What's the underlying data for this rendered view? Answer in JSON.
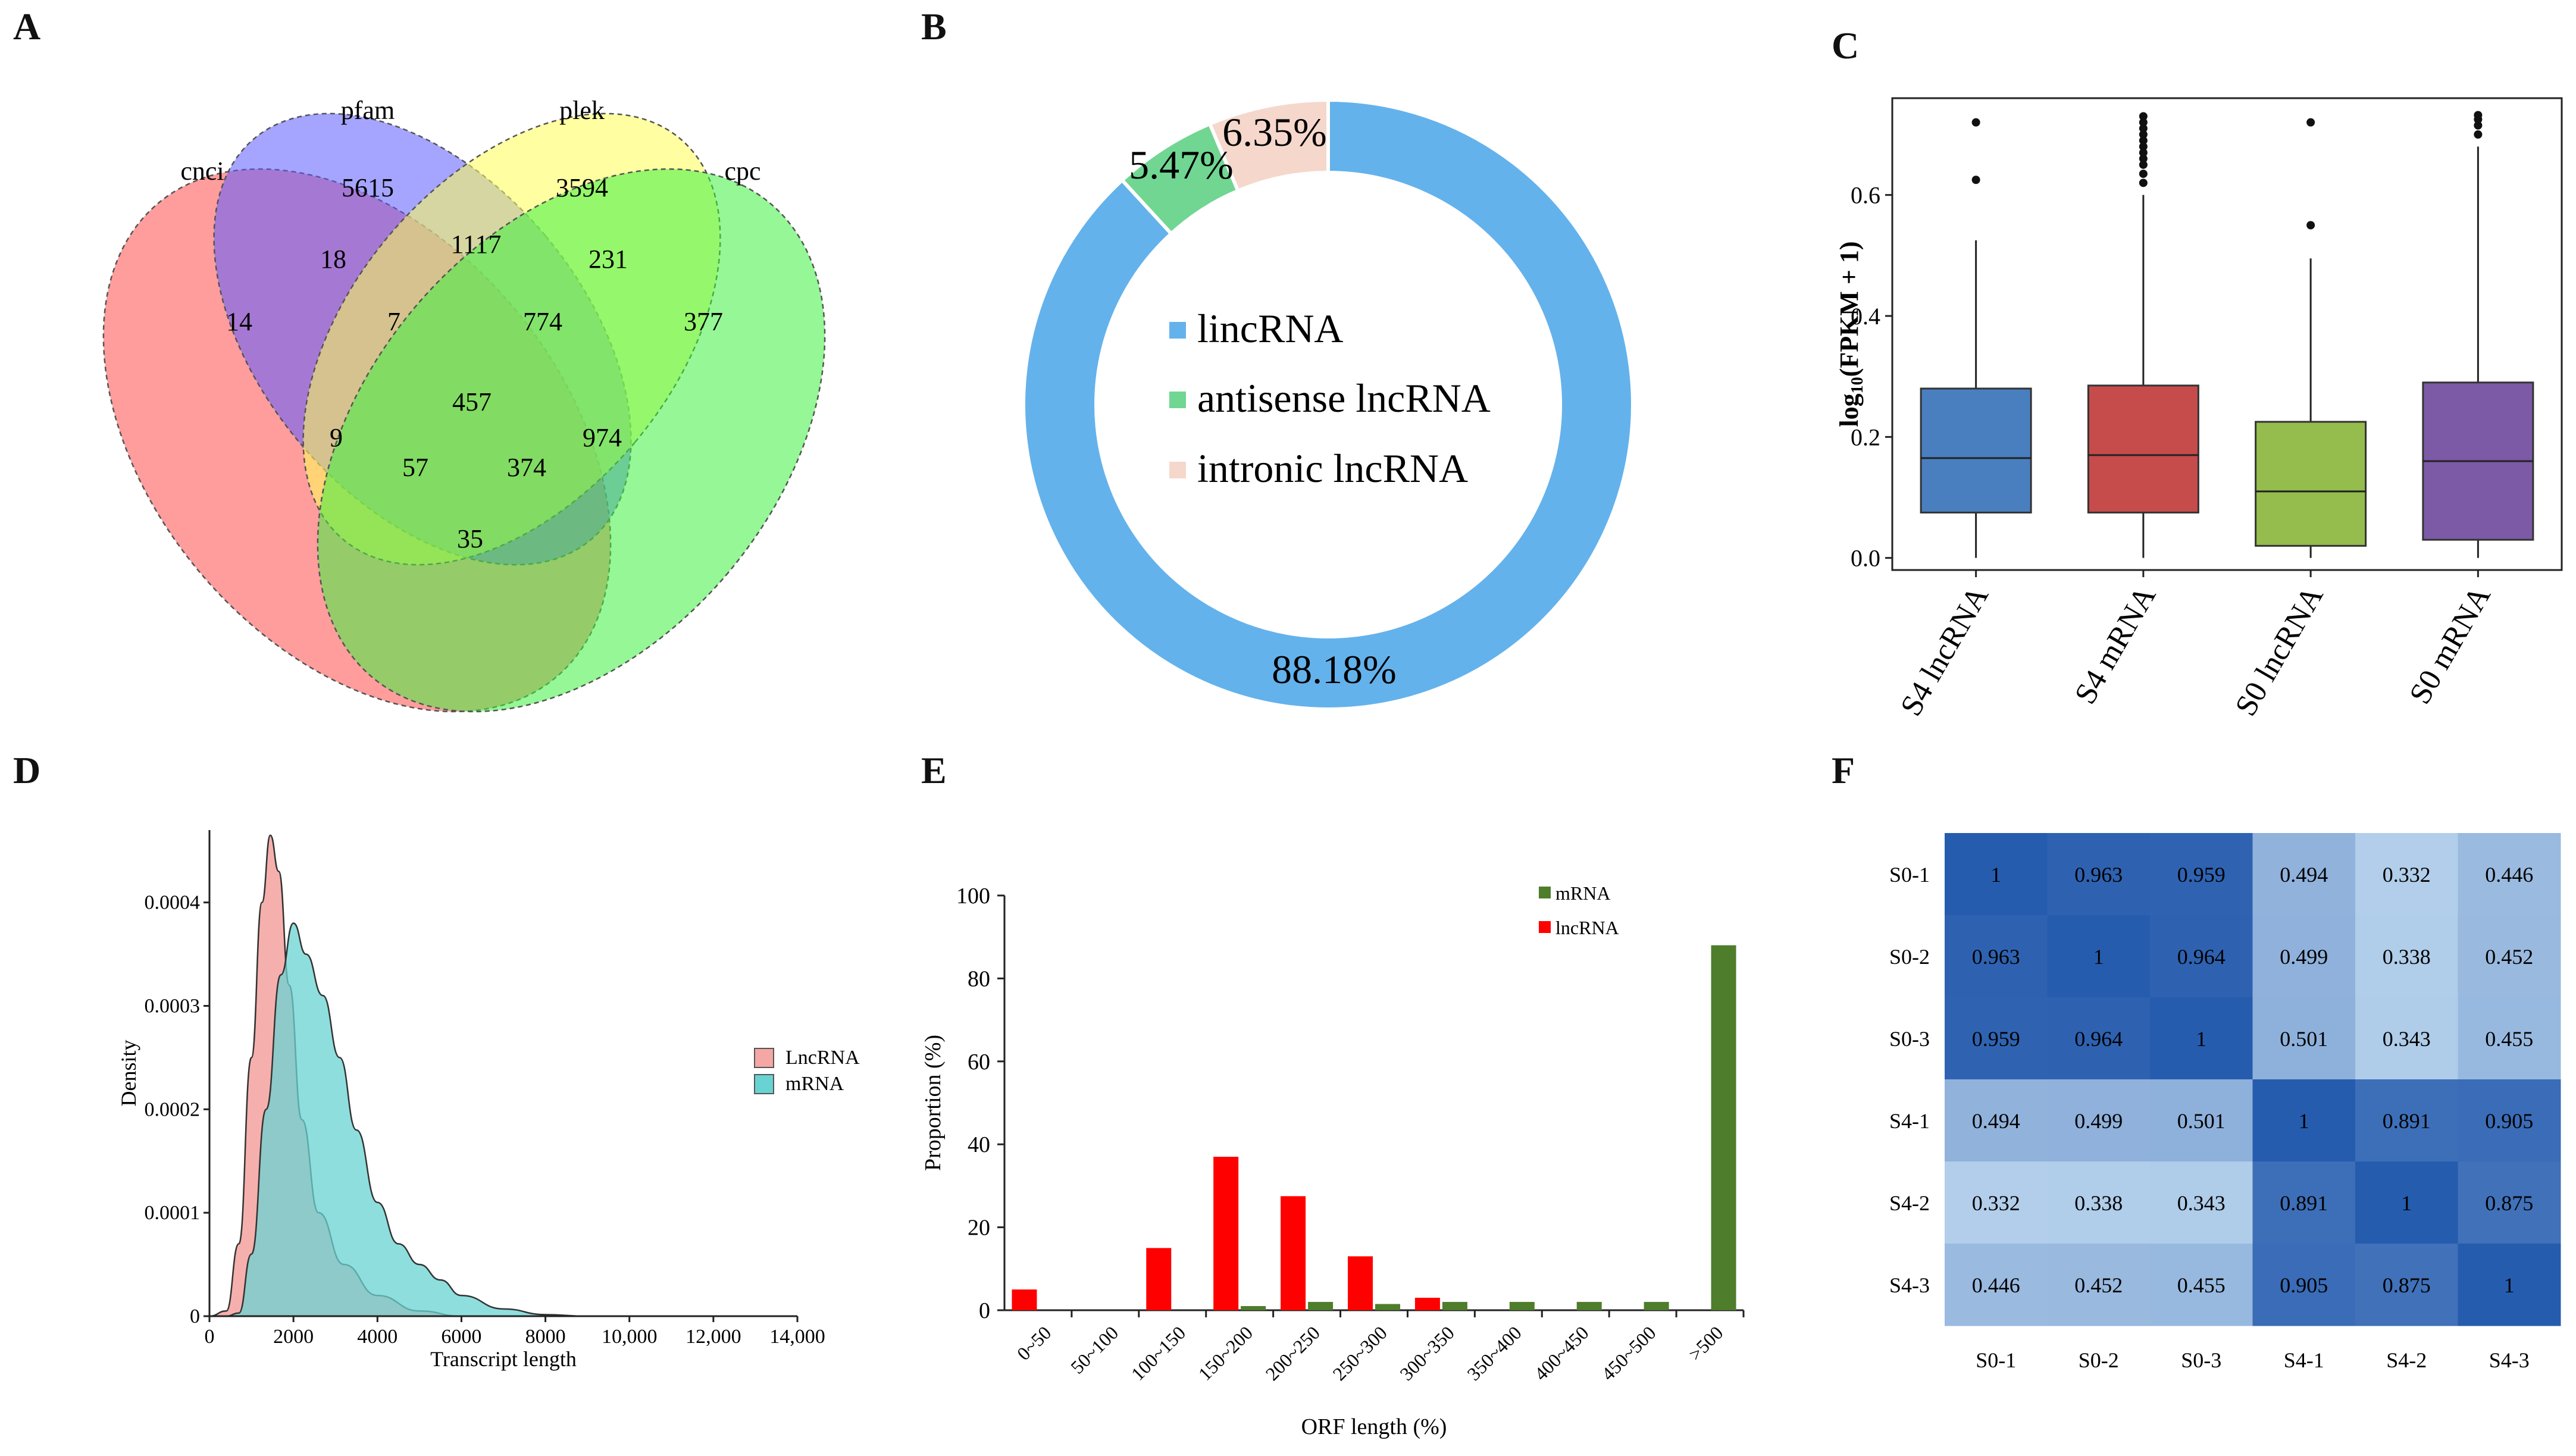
{
  "panel_letters": {
    "a": "A",
    "b": "B",
    "c": "C",
    "d": "D",
    "e": "E",
    "f": "F"
  },
  "chart_data": [
    {
      "panel": "A",
      "type": "venn",
      "sets": [
        "cnci",
        "pfam",
        "plek",
        "cpc"
      ],
      "colors": {
        "cnci": "#ff4d4d",
        "pfam": "#5b5bff",
        "plek": "#ffff55",
        "cpc": "#3ef03e"
      },
      "regions": {
        "cnci_only": "14",
        "pfam_only": "5615",
        "plek_only": "3594",
        "cpc_only": "377",
        "cnci_pfam": "18",
        "pfam_plek": "1117",
        "plek_cpc": "231",
        "cnci_pfam_plek": "7",
        "pfam_plek_cpc": "774",
        "all": "457",
        "cnci_plek": "9",
        "cnci_plek_cpc": "57",
        "cnci_pfam_cpc": "374",
        "pfam_cpc": "974",
        "cnci_cpc": "35"
      }
    },
    {
      "panel": "B",
      "type": "pie",
      "labels": [
        "lincRNA",
        "antisense lncRNA",
        "intronic lncRNA"
      ],
      "values": [
        88.18,
        5.47,
        6.35
      ],
      "value_labels": [
        "88.18%",
        "5.47%",
        "6.35%"
      ],
      "colors": [
        "#64b2ec",
        "#70d692",
        "#f5d7cc"
      ]
    },
    {
      "panel": "C",
      "type": "box",
      "ylabel_main": "log",
      "ylabel_sub": "10",
      "ylabel_rest": "(FPKM + 1)",
      "yticks": [
        "0.0",
        "0.2",
        "0.4",
        "0.6"
      ],
      "ylim": [
        -0.02,
        0.76
      ],
      "categories": [
        "S4 lncRNA",
        "S4 mRNA",
        "S0 lncRNA",
        "S0 mRNA"
      ],
      "colors": [
        "#4a7fbf",
        "#c64b4b",
        "#94bd4d",
        "#7c5aa6"
      ],
      "boxes": [
        {
          "min": 0.0,
          "q1": 0.075,
          "median": 0.165,
          "q3": 0.28,
          "max": 0.525,
          "outliers": [
            0.625,
            0.72
          ]
        },
        {
          "min": 0.0,
          "q1": 0.075,
          "median": 0.17,
          "q3": 0.285,
          "max": 0.6,
          "outliers": [
            0.62,
            0.635,
            0.65,
            0.66,
            0.67,
            0.68,
            0.69,
            0.7,
            0.71,
            0.72,
            0.73
          ]
        },
        {
          "min": 0.0,
          "q1": 0.02,
          "median": 0.11,
          "q3": 0.225,
          "max": 0.495,
          "outliers": [
            0.55,
            0.72
          ]
        },
        {
          "min": 0.0,
          "q1": 0.03,
          "median": 0.16,
          "q3": 0.29,
          "max": 0.68,
          "outliers": [
            0.7,
            0.715,
            0.725,
            0.732
          ]
        }
      ]
    },
    {
      "panel": "D",
      "type": "area",
      "xlabel": "Transcript length",
      "ylabel": "Density",
      "xticks": [
        "0",
        "2000",
        "4000",
        "6000",
        "8000",
        "10,000",
        "12,000",
        "14,000"
      ],
      "xlim": [
        0,
        14000
      ],
      "yticks": [
        "0",
        "0.0001",
        "0.0002",
        "0.0003",
        "0.0004"
      ],
      "ylim": [
        0,
        0.00047
      ],
      "series": [
        {
          "name": "LncRNA",
          "color": "#f4a7a4",
          "points": [
            [
              0,
              0
            ],
            [
              400,
              5e-06
            ],
            [
              700,
              7e-05
            ],
            [
              1000,
              0.00025
            ],
            [
              1250,
              0.0004
            ],
            [
              1450,
              0.000465
            ],
            [
              1650,
              0.00043
            ],
            [
              1900,
              0.00032
            ],
            [
              2200,
              0.00019
            ],
            [
              2600,
              0.0001
            ],
            [
              3200,
              5e-05
            ],
            [
              4000,
              2e-05
            ],
            [
              5000,
              5e-06
            ],
            [
              6000,
              0.0
            ]
          ]
        },
        {
          "name": "mRNA",
          "color": "#69d3d3",
          "points": [
            [
              0,
              0
            ],
            [
              400,
              0.0
            ],
            [
              700,
              3e-06
            ],
            [
              1000,
              6e-05
            ],
            [
              1350,
              0.0002
            ],
            [
              1700,
              0.00033
            ],
            [
              2000,
              0.00038
            ],
            [
              2300,
              0.00035
            ],
            [
              2700,
              0.00031
            ],
            [
              3100,
              0.00025
            ],
            [
              3500,
              0.00018
            ],
            [
              4000,
              0.00011
            ],
            [
              4500,
              7e-05
            ],
            [
              5000,
              5e-05
            ],
            [
              5500,
              3.5e-05
            ],
            [
              6000,
              2e-05
            ],
            [
              7000,
              7e-06
            ],
            [
              8000,
              1.5e-06
            ],
            [
              9000,
              0.0
            ]
          ]
        }
      ]
    },
    {
      "panel": "E",
      "type": "bar",
      "xlabel": "ORF length (%)",
      "ylabel": "Proportion (%)",
      "yticks": [
        "0",
        "20",
        "40",
        "60",
        "80",
        "100"
      ],
      "ylim": [
        0,
        100
      ],
      "categories": [
        "0~50",
        "50~100",
        "100~150",
        "150~200",
        "200~250",
        "250~300",
        "300~350",
        "350~400",
        "400~450",
        "450~500",
        ">500"
      ],
      "series": [
        {
          "name": "lncRNA",
          "color": "#ff0000",
          "values": [
            5,
            0,
            15,
            37,
            27.5,
            13,
            3,
            0,
            0,
            0,
            0
          ]
        },
        {
          "name": "mRNA",
          "color": "#4e7d2c",
          "values": [
            0,
            0,
            0,
            1,
            2,
            1.5,
            2,
            2,
            2,
            2,
            88
          ]
        }
      ]
    },
    {
      "panel": "F",
      "type": "heatmap",
      "rows": [
        "S0-1",
        "S0-2",
        "S0-3",
        "S4-1",
        "S4-2",
        "S4-3"
      ],
      "cols": [
        "S0-1",
        "S0-2",
        "S0-3",
        "S4-1",
        "S4-2",
        "S4-3"
      ],
      "values": [
        [
          "1",
          "0.963",
          "0.959",
          "0.494",
          "0.332",
          "0.446"
        ],
        [
          "0.963",
          "1",
          "0.964",
          "0.499",
          "0.338",
          "0.452"
        ],
        [
          "0.959",
          "0.964",
          "1",
          "0.501",
          "0.343",
          "0.455"
        ],
        [
          "0.494",
          "0.499",
          "0.501",
          "1",
          "0.891",
          "0.905"
        ],
        [
          "0.332",
          "0.338",
          "0.343",
          "0.891",
          "1",
          "0.875"
        ],
        [
          "0.446",
          "0.452",
          "0.455",
          "0.905",
          "0.875",
          "1"
        ]
      ]
    }
  ]
}
